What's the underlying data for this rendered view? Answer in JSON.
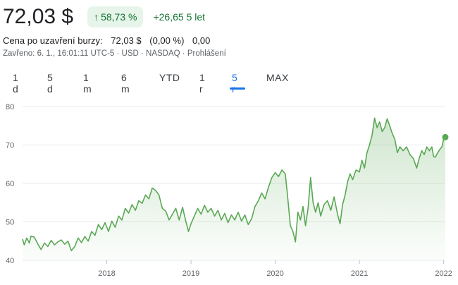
{
  "quote": {
    "price": "72,03 $",
    "change_pct": "58,73 %",
    "change_abs": "+26,65 5 let",
    "close_label": "Cena po uzavření burzy:",
    "close_value": "72,03 $",
    "close_change_pct": "(0,00 %)",
    "close_change_abs": "0,00",
    "meta": "Zavřeno: 6. 1., 16:01:11 UTC-5 · USD · NASDAQ · Prohlášení"
  },
  "tabs": [
    {
      "label": "1 d"
    },
    {
      "label": "5 d"
    },
    {
      "label": "1 m"
    },
    {
      "label": "6 m"
    },
    {
      "label": "YTD"
    },
    {
      "label": "1 r"
    },
    {
      "label": "5 r",
      "active": true
    },
    {
      "label": "MAX"
    }
  ],
  "colors": {
    "up": "#137333",
    "line": "#5aa854",
    "accent": "#1a73e8"
  },
  "chart_data": {
    "type": "area",
    "x_tick_labels": [
      "2018",
      "2019",
      "2020",
      "2021",
      "2022"
    ],
    "y_tick_labels": [
      "40",
      "50",
      "60",
      "70",
      "80"
    ],
    "ylim": [
      40,
      80
    ],
    "xlim": [
      2017.0,
      2022.02
    ],
    "grid": true,
    "series": [
      {
        "points": [
          [
            2017.0,
            45.5
          ],
          [
            2017.02,
            44.0
          ],
          [
            2017.05,
            45.8
          ],
          [
            2017.08,
            44.5
          ],
          [
            2017.1,
            46.3
          ],
          [
            2017.14,
            46.0
          ],
          [
            2017.18,
            44.3
          ],
          [
            2017.22,
            42.8
          ],
          [
            2017.26,
            44.5
          ],
          [
            2017.3,
            43.6
          ],
          [
            2017.34,
            45.2
          ],
          [
            2017.38,
            44.0
          ],
          [
            2017.42,
            44.8
          ],
          [
            2017.46,
            45.3
          ],
          [
            2017.5,
            44.2
          ],
          [
            2017.54,
            45.0
          ],
          [
            2017.58,
            42.5
          ],
          [
            2017.62,
            43.6
          ],
          [
            2017.66,
            45.8
          ],
          [
            2017.7,
            44.6
          ],
          [
            2017.74,
            46.2
          ],
          [
            2017.78,
            45.0
          ],
          [
            2017.82,
            47.5
          ],
          [
            2017.86,
            46.5
          ],
          [
            2017.9,
            49.3
          ],
          [
            2017.94,
            48.0
          ],
          [
            2017.98,
            49.8
          ],
          [
            2018.02,
            47.5
          ],
          [
            2018.06,
            50.2
          ],
          [
            2018.1,
            48.6
          ],
          [
            2018.14,
            51.5
          ],
          [
            2018.18,
            50.5
          ],
          [
            2018.22,
            53.5
          ],
          [
            2018.26,
            52.3
          ],
          [
            2018.3,
            54.5
          ],
          [
            2018.34,
            53.0
          ],
          [
            2018.38,
            55.5
          ],
          [
            2018.42,
            54.8
          ],
          [
            2018.46,
            57.0
          ],
          [
            2018.5,
            56.0
          ],
          [
            2018.54,
            58.8
          ],
          [
            2018.58,
            58.2
          ],
          [
            2018.62,
            57.0
          ],
          [
            2018.66,
            53.5
          ],
          [
            2018.7,
            52.8
          ],
          [
            2018.74,
            50.5
          ],
          [
            2018.78,
            52.0
          ],
          [
            2018.82,
            53.5
          ],
          [
            2018.86,
            50.5
          ],
          [
            2018.9,
            53.8
          ],
          [
            2018.94,
            50.0
          ],
          [
            2018.97,
            47.5
          ],
          [
            2019.0,
            49.5
          ],
          [
            2019.04,
            51.5
          ],
          [
            2019.08,
            53.5
          ],
          [
            2019.12,
            52.0
          ],
          [
            2019.16,
            54.3
          ],
          [
            2019.2,
            52.5
          ],
          [
            2019.24,
            53.5
          ],
          [
            2019.28,
            51.5
          ],
          [
            2019.32,
            53.0
          ],
          [
            2019.36,
            50.5
          ],
          [
            2019.4,
            52.2
          ],
          [
            2019.44,
            49.8
          ],
          [
            2019.48,
            51.8
          ],
          [
            2019.52,
            50.5
          ],
          [
            2019.56,
            52.5
          ],
          [
            2019.6,
            50.2
          ],
          [
            2019.64,
            51.8
          ],
          [
            2019.68,
            49.3
          ],
          [
            2019.72,
            50.8
          ],
          [
            2019.76,
            54.0
          ],
          [
            2019.8,
            55.5
          ],
          [
            2019.84,
            57.5
          ],
          [
            2019.88,
            56.0
          ],
          [
            2019.92,
            59.0
          ],
          [
            2019.96,
            61.5
          ],
          [
            2020.0,
            62.8
          ],
          [
            2020.04,
            61.8
          ],
          [
            2020.08,
            63.5
          ],
          [
            2020.12,
            62.5
          ],
          [
            2020.15,
            56.0
          ],
          [
            2020.18,
            49.0
          ],
          [
            2020.21,
            47.5
          ],
          [
            2020.24,
            44.8
          ],
          [
            2020.27,
            52.5
          ],
          [
            2020.3,
            50.5
          ],
          [
            2020.33,
            54.0
          ],
          [
            2020.36,
            49.0
          ],
          [
            2020.39,
            53.5
          ],
          [
            2020.42,
            61.5
          ],
          [
            2020.45,
            55.0
          ],
          [
            2020.48,
            52.5
          ],
          [
            2020.51,
            55.0
          ],
          [
            2020.54,
            51.5
          ],
          [
            2020.58,
            54.5
          ],
          [
            2020.62,
            55.5
          ],
          [
            2020.66,
            53.0
          ],
          [
            2020.7,
            56.5
          ],
          [
            2020.74,
            52.0
          ],
          [
            2020.77,
            49.5
          ],
          [
            2020.8,
            54.5
          ],
          [
            2020.83,
            57.0
          ],
          [
            2020.86,
            60.5
          ],
          [
            2020.89,
            62.5
          ],
          [
            2020.92,
            61.0
          ],
          [
            2020.96,
            63.5
          ],
          [
            2021.0,
            63.0
          ],
          [
            2021.03,
            66.0
          ],
          [
            2021.06,
            64.0
          ],
          [
            2021.09,
            68.0
          ],
          [
            2021.12,
            70.0
          ],
          [
            2021.15,
            72.5
          ],
          [
            2021.18,
            77.0
          ],
          [
            2021.21,
            74.5
          ],
          [
            2021.24,
            76.0
          ],
          [
            2021.27,
            73.5
          ],
          [
            2021.3,
            74.5
          ],
          [
            2021.33,
            76.8
          ],
          [
            2021.36,
            75.0
          ],
          [
            2021.39,
            73.0
          ],
          [
            2021.42,
            71.5
          ],
          [
            2021.45,
            68.0
          ],
          [
            2021.48,
            69.5
          ],
          [
            2021.52,
            68.5
          ],
          [
            2021.56,
            69.5
          ],
          [
            2021.6,
            67.5
          ],
          [
            2021.64,
            66.5
          ],
          [
            2021.68,
            64.0
          ],
          [
            2021.71,
            66.5
          ],
          [
            2021.74,
            68.5
          ],
          [
            2021.77,
            67.5
          ],
          [
            2021.8,
            69.5
          ],
          [
            2021.83,
            68.5
          ],
          [
            2021.86,
            69.5
          ],
          [
            2021.88,
            67.0
          ],
          [
            2021.9,
            66.8
          ],
          [
            2021.93,
            68.0
          ],
          [
            2021.96,
            69.0
          ],
          [
            2021.98,
            69.5
          ],
          [
            2022.0,
            71.5
          ],
          [
            2022.02,
            72.03
          ]
        ]
      }
    ]
  }
}
